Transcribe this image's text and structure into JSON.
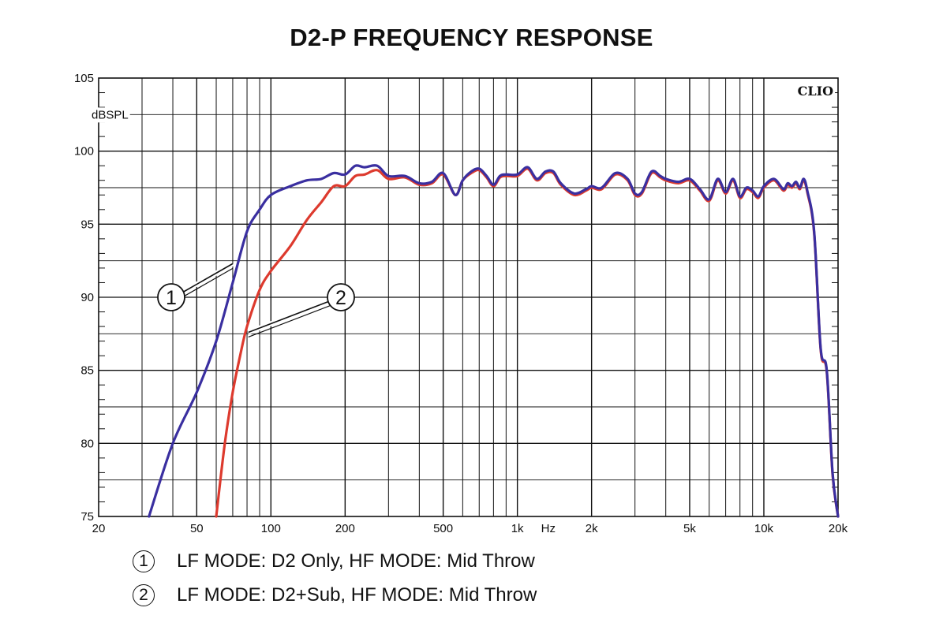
{
  "chart_data": {
    "type": "line",
    "title": "D2-P FREQUENCY RESPONSE",
    "ylabel": "dBSPL",
    "xunit": "Hz",
    "watermark": "CLIO",
    "xscale": "log",
    "xlim": [
      20,
      20000
    ],
    "ylim": [
      75,
      105
    ],
    "grid": true,
    "y_ticks": [
      {
        "value": 105,
        "label": "105"
      },
      {
        "value": 100,
        "label": "100"
      },
      {
        "value": 95,
        "label": "95"
      },
      {
        "value": 90,
        "label": "90"
      },
      {
        "value": 85,
        "label": "85"
      },
      {
        "value": 80,
        "label": "80"
      },
      {
        "value": 75,
        "label": "75"
      }
    ],
    "x_ticks": [
      {
        "value": 20,
        "label": "20"
      },
      {
        "value": 50,
        "label": "50"
      },
      {
        "value": 100,
        "label": "100"
      },
      {
        "value": 200,
        "label": "200"
      },
      {
        "value": 500,
        "label": "500"
      },
      {
        "value": 1000,
        "label": "1k"
      },
      {
        "value": 2000,
        "label": "2k"
      },
      {
        "value": 5000,
        "label": "5k"
      },
      {
        "value": 10000,
        "label": "10k"
      },
      {
        "value": 20000,
        "label": "20k"
      }
    ],
    "series": [
      {
        "name": "1",
        "legend": "LF MODE: D2 Only,  HF MODE: Mid Throw",
        "color": "#3a2fa0",
        "callout_at": [
          70,
          92.3
        ],
        "x": [
          32,
          40,
          50,
          60,
          70,
          80,
          90,
          100,
          120,
          140,
          160,
          180,
          200,
          220,
          240,
          270,
          300,
          350,
          400,
          450,
          500,
          560,
          600,
          650,
          700,
          750,
          800,
          850,
          900,
          1000,
          1100,
          1200,
          1300,
          1400,
          1500,
          1700,
          1900,
          2000,
          2200,
          2500,
          2800,
          3000,
          3200,
          3500,
          3800,
          4000,
          4500,
          5000,
          5500,
          6000,
          6500,
          7000,
          7500,
          8000,
          8500,
          9000,
          9500,
          10000,
          11000,
          12000,
          12500,
          13000,
          13500,
          14000,
          14500,
          15000,
          16000,
          17000,
          18000,
          19000,
          20000
        ],
        "y": [
          75,
          80,
          83.5,
          87,
          91,
          94.5,
          96,
          97,
          97.6,
          98,
          98.1,
          98.5,
          98.4,
          99,
          98.9,
          99,
          98.3,
          98.3,
          97.8,
          97.9,
          98.5,
          97,
          98,
          98.6,
          98.8,
          98.3,
          97.7,
          98.3,
          98.4,
          98.4,
          98.9,
          98.1,
          98.6,
          98.6,
          97.8,
          97.1,
          97.4,
          97.6,
          97.5,
          98.5,
          98.1,
          97.1,
          97.2,
          98.6,
          98.3,
          98.1,
          97.9,
          98.1,
          97.4,
          96.7,
          98.1,
          97.2,
          98.1,
          96.9,
          97.5,
          97.3,
          96.9,
          97.6,
          98.1,
          97.4,
          97.8,
          97.6,
          97.9,
          97.5,
          98.1,
          97.3,
          94.5,
          86.5,
          85,
          78,
          75
        ]
      },
      {
        "name": "2",
        "legend": "LF MODE: D2+Sub,  HF MODE: Mid Throw",
        "color": "#dd3a2e",
        "callout_at": [
          81,
          87.6
        ],
        "x": [
          60,
          65,
          70,
          75,
          80,
          90,
          100,
          120,
          140,
          160,
          180,
          200,
          220,
          240,
          270,
          300,
          350,
          400,
          450,
          500,
          560,
          600,
          650,
          700,
          750,
          800,
          850,
          900,
          1000,
          1100,
          1200,
          1300,
          1400,
          1500,
          1700,
          1900,
          2000,
          2200,
          2500,
          2800,
          3000,
          3200,
          3500,
          3800,
          4000,
          4500,
          5000,
          5500,
          6000,
          6500,
          7000,
          7500,
          8000,
          8500,
          9000,
          9500,
          10000,
          11000,
          12000,
          12500,
          13000,
          13500,
          14000,
          14500,
          15000,
          16000,
          17000,
          18000,
          19000,
          20000
        ],
        "y": [
          75,
          80,
          83.5,
          86,
          88,
          90.5,
          91.8,
          93.5,
          95.3,
          96.5,
          97.6,
          97.6,
          98.3,
          98.4,
          98.7,
          98.1,
          98.2,
          97.7,
          97.8,
          98.4,
          97,
          98,
          98.5,
          98.7,
          98.2,
          97.6,
          98.2,
          98.3,
          98.3,
          98.8,
          98,
          98.5,
          98.5,
          97.7,
          97,
          97.3,
          97.5,
          97.4,
          98.4,
          98,
          97,
          97.1,
          98.5,
          98.2,
          98,
          97.8,
          98,
          97.3,
          96.6,
          98,
          97.1,
          98,
          96.8,
          97.4,
          97.2,
          96.8,
          97.5,
          98,
          97.3,
          97.7,
          97.5,
          97.8,
          97.4,
          98,
          97.2,
          94.4,
          86.4,
          84.9,
          77.9,
          75
        ]
      }
    ]
  }
}
